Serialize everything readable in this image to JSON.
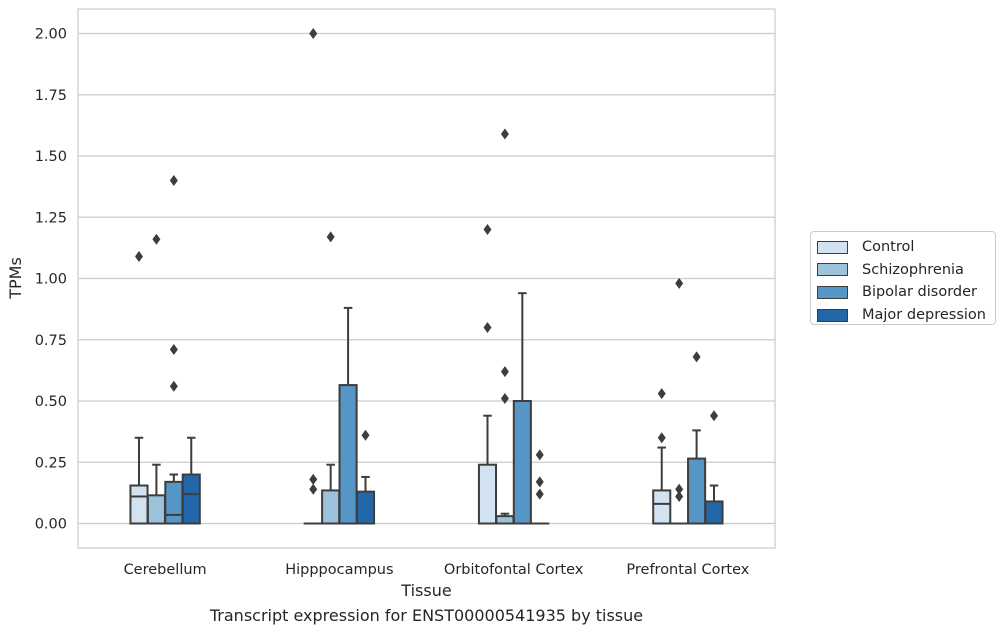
{
  "caption": "Transcript expression for ENST00000541935 by tissue",
  "chart_data": {
    "type": "box",
    "title": "",
    "xlabel": "Tissue",
    "ylabel": "TPMs",
    "ylim": [
      -0.1,
      2.1
    ],
    "yticks": [
      "0.00",
      "0.25",
      "0.50",
      "0.75",
      "1.00",
      "1.25",
      "1.50",
      "1.75",
      "2.00"
    ],
    "grid": "horizontal",
    "legend_position": "right, outside plot",
    "categories": [
      "Cerebellum",
      "Hipppocampus",
      "Orbitofontal Cortex",
      "Prefrontal Cortex"
    ],
    "series": [
      {
        "name": "Control",
        "color": "#d2e2f0",
        "boxes": [
          {
            "q1": 0.0,
            "median": 0.11,
            "q3": 0.155,
            "whisker_low": 0.0,
            "whisker_high": 0.35,
            "outliers": [
              1.09
            ]
          },
          {
            "q1": 0.0,
            "median": 0.0,
            "q3": 0.0,
            "whisker_low": 0.0,
            "whisker_high": 0.0,
            "outliers": [
              0.18,
              0.14,
              2.0
            ]
          },
          {
            "q1": 0.0,
            "median": 0.0,
            "q3": 0.24,
            "whisker_low": 0.0,
            "whisker_high": 0.44,
            "outliers": [
              0.8,
              1.2
            ]
          },
          {
            "q1": 0.0,
            "median": 0.08,
            "q3": 0.135,
            "whisker_low": 0.0,
            "whisker_high": 0.31,
            "outliers": [
              0.35,
              0.53
            ]
          }
        ]
      },
      {
        "name": "Schizophrenia",
        "color": "#9cc2dc",
        "boxes": [
          {
            "q1": 0.0,
            "median": 0.0,
            "q3": 0.115,
            "whisker_low": 0.0,
            "whisker_high": 0.24,
            "outliers": [
              1.16
            ]
          },
          {
            "q1": 0.0,
            "median": 0.0,
            "q3": 0.135,
            "whisker_low": 0.0,
            "whisker_high": 0.24,
            "outliers": [
              1.17
            ]
          },
          {
            "q1": 0.0,
            "median": 0.0,
            "q3": 0.03,
            "whisker_low": 0.0,
            "whisker_high": 0.04,
            "outliers": [
              0.51,
              0.62,
              1.59
            ]
          },
          {
            "q1": 0.0,
            "median": 0.0,
            "q3": 0.0,
            "whisker_low": 0.0,
            "whisker_high": 0.0,
            "outliers": [
              0.11,
              0.14,
              0.98
            ]
          }
        ]
      },
      {
        "name": "Bipolar disorder",
        "color": "#5596c6",
        "boxes": [
          {
            "q1": 0.0,
            "median": 0.035,
            "q3": 0.17,
            "whisker_low": 0.0,
            "whisker_high": 0.2,
            "outliers": [
              0.56,
              0.71,
              1.4
            ]
          },
          {
            "q1": 0.0,
            "median": 0.0,
            "q3": 0.565,
            "whisker_low": 0.0,
            "whisker_high": 0.88,
            "outliers": []
          },
          {
            "q1": 0.0,
            "median": 0.0,
            "q3": 0.5,
            "whisker_low": 0.0,
            "whisker_high": 0.94,
            "outliers": []
          },
          {
            "q1": 0.0,
            "median": 0.0,
            "q3": 0.265,
            "whisker_low": 0.0,
            "whisker_high": 0.38,
            "outliers": [
              0.68
            ]
          }
        ]
      },
      {
        "name": "Major depression",
        "color": "#2167a9",
        "boxes": [
          {
            "q1": 0.0,
            "median": 0.12,
            "q3": 0.2,
            "whisker_low": 0.0,
            "whisker_high": 0.35,
            "outliers": []
          },
          {
            "q1": 0.0,
            "median": 0.0,
            "q3": 0.13,
            "whisker_low": 0.0,
            "whisker_high": 0.19,
            "outliers": [
              0.36
            ]
          },
          {
            "q1": 0.0,
            "median": 0.0,
            "q3": 0.0,
            "whisker_low": 0.0,
            "whisker_high": 0.0,
            "outliers": [
              0.12,
              0.17,
              0.28
            ]
          },
          {
            "q1": 0.0,
            "median": 0.0,
            "q3": 0.09,
            "whisker_low": 0.0,
            "whisker_high": 0.155,
            "outliers": [
              0.44
            ]
          }
        ]
      }
    ]
  }
}
